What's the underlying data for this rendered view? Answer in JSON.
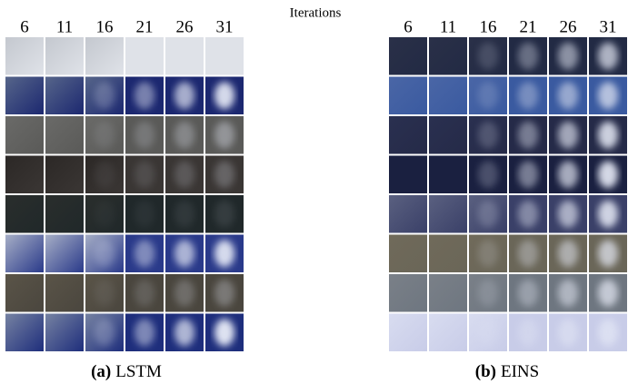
{
  "header": "Iterations",
  "panels": [
    {
      "label": "(a)",
      "name": "LSTM",
      "iterations": [
        "6",
        "11",
        "16",
        "21",
        "26",
        "31"
      ]
    },
    {
      "label": "(b)",
      "name": "EINS",
      "iterations": [
        "6",
        "11",
        "16",
        "21",
        "26",
        "31"
      ]
    }
  ]
}
